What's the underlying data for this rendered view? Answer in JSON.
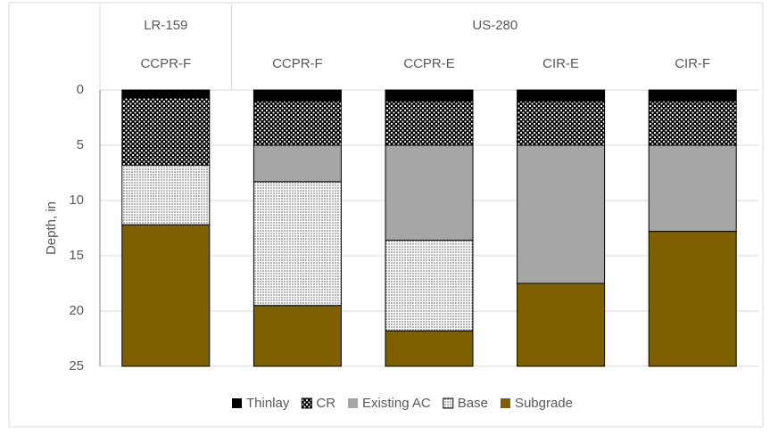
{
  "chart_data": {
    "type": "stacked_bar",
    "groups": [
      {
        "label": "LR-159",
        "categories": [
          "CCPR-F"
        ]
      },
      {
        "label": "US-280",
        "categories": [
          "CCPR-F",
          "CCPR-E",
          "CIR-E",
          "CIR-F"
        ]
      }
    ],
    "y_label": "Depth, in",
    "ylim": [
      0,
      25
    ],
    "yticks": [
      0,
      5,
      10,
      15,
      20,
      25
    ],
    "y_inverted": true,
    "grid": true,
    "legend": "bottom",
    "series": [
      {
        "name": "Thinlay",
        "color": "#000000",
        "values": [
          0.7,
          1,
          1,
          1,
          1
        ]
      },
      {
        "name": "CR",
        "color": "#000000",
        "fill_pattern": "dots",
        "values": [
          6.1,
          4,
          4,
          4,
          4
        ]
      },
      {
        "name": "Existing AC",
        "color": "#a6a6a6",
        "values": [
          0,
          3.3,
          8.6,
          12.5,
          7.8
        ]
      },
      {
        "name": "Base",
        "color": "#ffffff",
        "fill_pattern": "dots",
        "values": [
          5.4,
          11.2,
          8.2,
          0,
          0
        ]
      },
      {
        "name": "Subgrade",
        "color": "#7f6000",
        "values": [
          12.8,
          5.5,
          3.2,
          7.5,
          12.2
        ]
      }
    ]
  }
}
